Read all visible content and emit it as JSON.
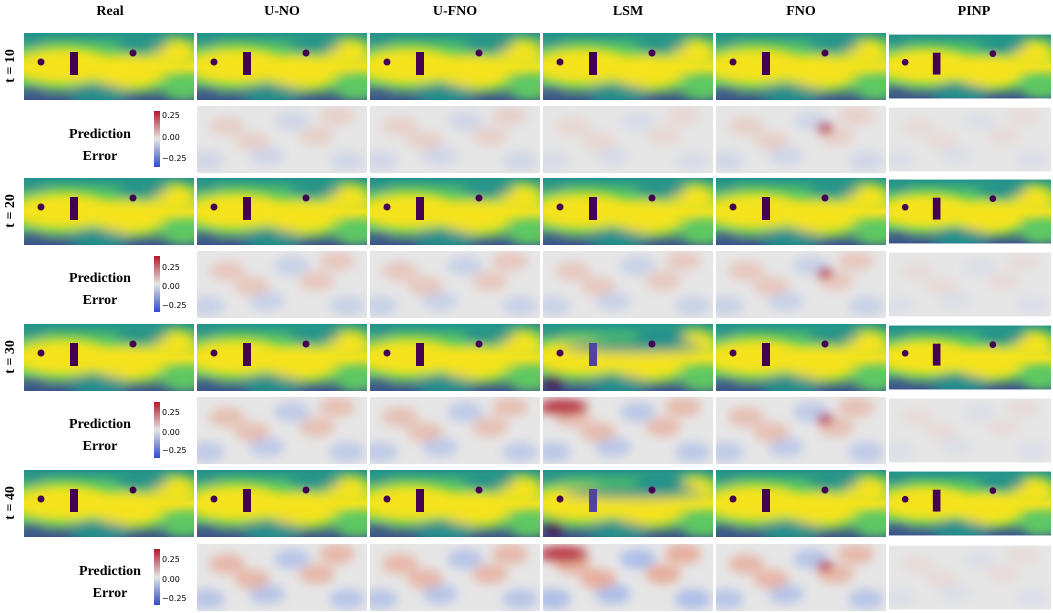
{
  "columns": [
    "Real",
    "U-NO",
    "U-FNO",
    "LSM",
    "FNO",
    "PINP"
  ],
  "time_rows": [
    {
      "label": "t = 10"
    },
    {
      "label": "t = 20"
    },
    {
      "label": "t = 30"
    },
    {
      "label": "t = 40"
    }
  ],
  "error_label_line1": "Prediction",
  "error_label_line2": "Error",
  "colorbar": {
    "ticks": [
      "0.25",
      "0.00",
      "−0.25"
    ],
    "top_color": "#b2182b",
    "mid_color": "#e6e6e6",
    "bottom_color": "#2c4bc8"
  },
  "field_colors": {
    "high": "#f4e31a",
    "mid": "#5ec962",
    "low": "#21918c",
    "deep": "#3b528b",
    "obstacle": "#440154"
  }
}
